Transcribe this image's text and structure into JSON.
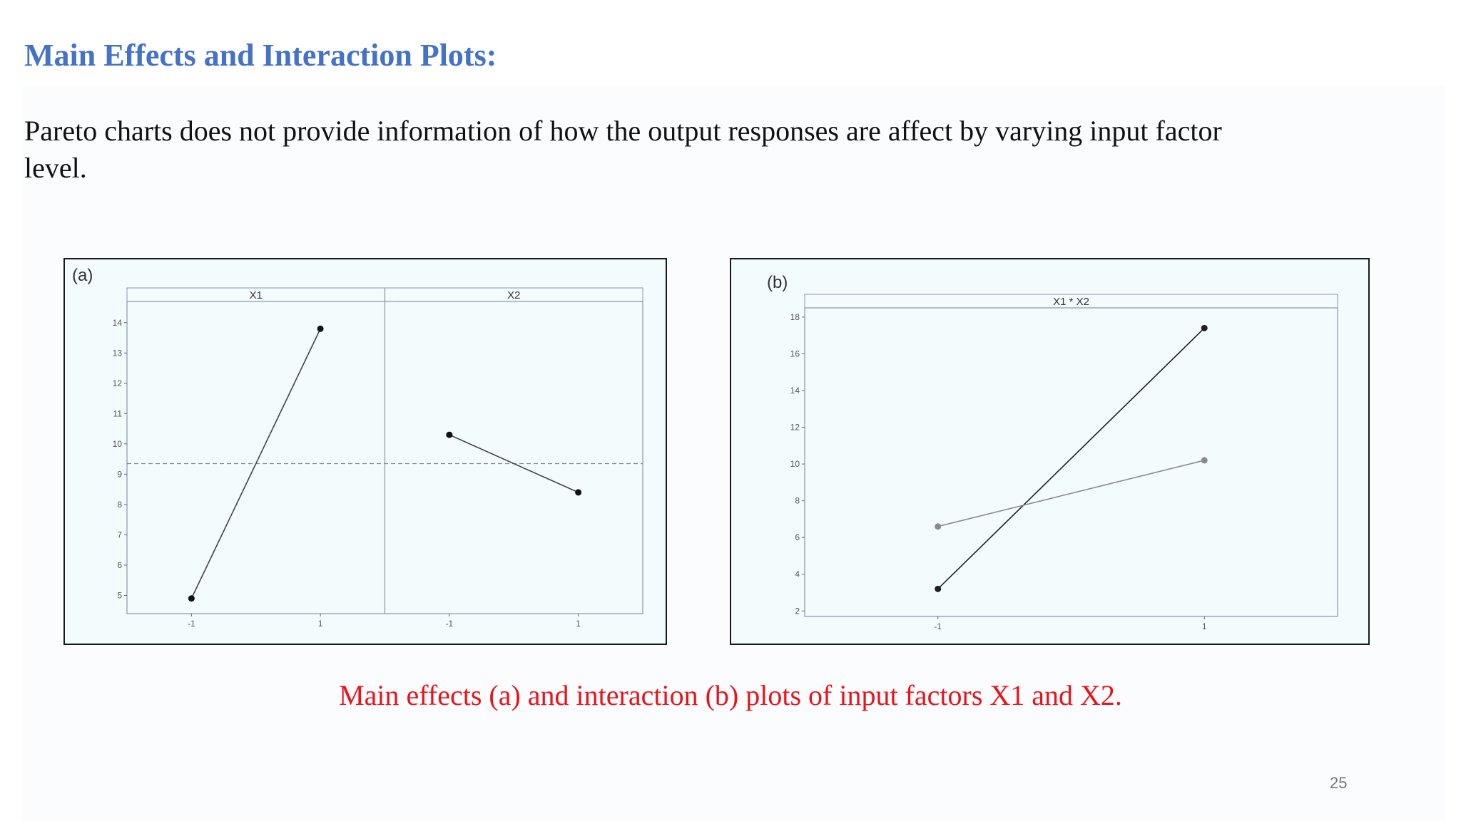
{
  "slide": {
    "title": "Main Effects and Interaction Plots:",
    "body": "Pareto charts does not provide information of how the output responses are affect by varying input factor level.",
    "caption": "Main effects (a) and interaction (b) plots of input factors X1 and X2.",
    "page_number": "25"
  },
  "chart_data": [
    {
      "type": "line",
      "panel_label": "(a)",
      "facets": [
        {
          "name": "X1",
          "x": [
            -1,
            1
          ],
          "y": [
            4.9,
            13.8
          ]
        },
        {
          "name": "X2",
          "x": [
            -1,
            1
          ],
          "y": [
            10.3,
            8.4
          ]
        }
      ],
      "x_ticks": [
        "-1",
        "1"
      ],
      "y_ticks": [
        5,
        6,
        7,
        8,
        9,
        10,
        11,
        12,
        13,
        14
      ],
      "ylim": [
        4.4,
        14.7
      ],
      "reference_line": 9.35,
      "grid": false,
      "colors": {
        "line": "#444444",
        "reference": "#888888"
      }
    },
    {
      "type": "line",
      "panel_label": "(b)",
      "facets": [
        {
          "name": "X1 * X2"
        }
      ],
      "series": [
        {
          "x": [
            -1,
            1
          ],
          "y": [
            3.2,
            17.4
          ],
          "color": "#1f1f1f"
        },
        {
          "x": [
            -1,
            1
          ],
          "y": [
            6.6,
            10.2
          ],
          "color": "#8a8a8a"
        }
      ],
      "x_ticks": [
        "-1",
        "1"
      ],
      "y_ticks": [
        2,
        4,
        6,
        8,
        10,
        12,
        14,
        16,
        18
      ],
      "ylim": [
        1.7,
        18.5
      ],
      "grid": false
    }
  ]
}
